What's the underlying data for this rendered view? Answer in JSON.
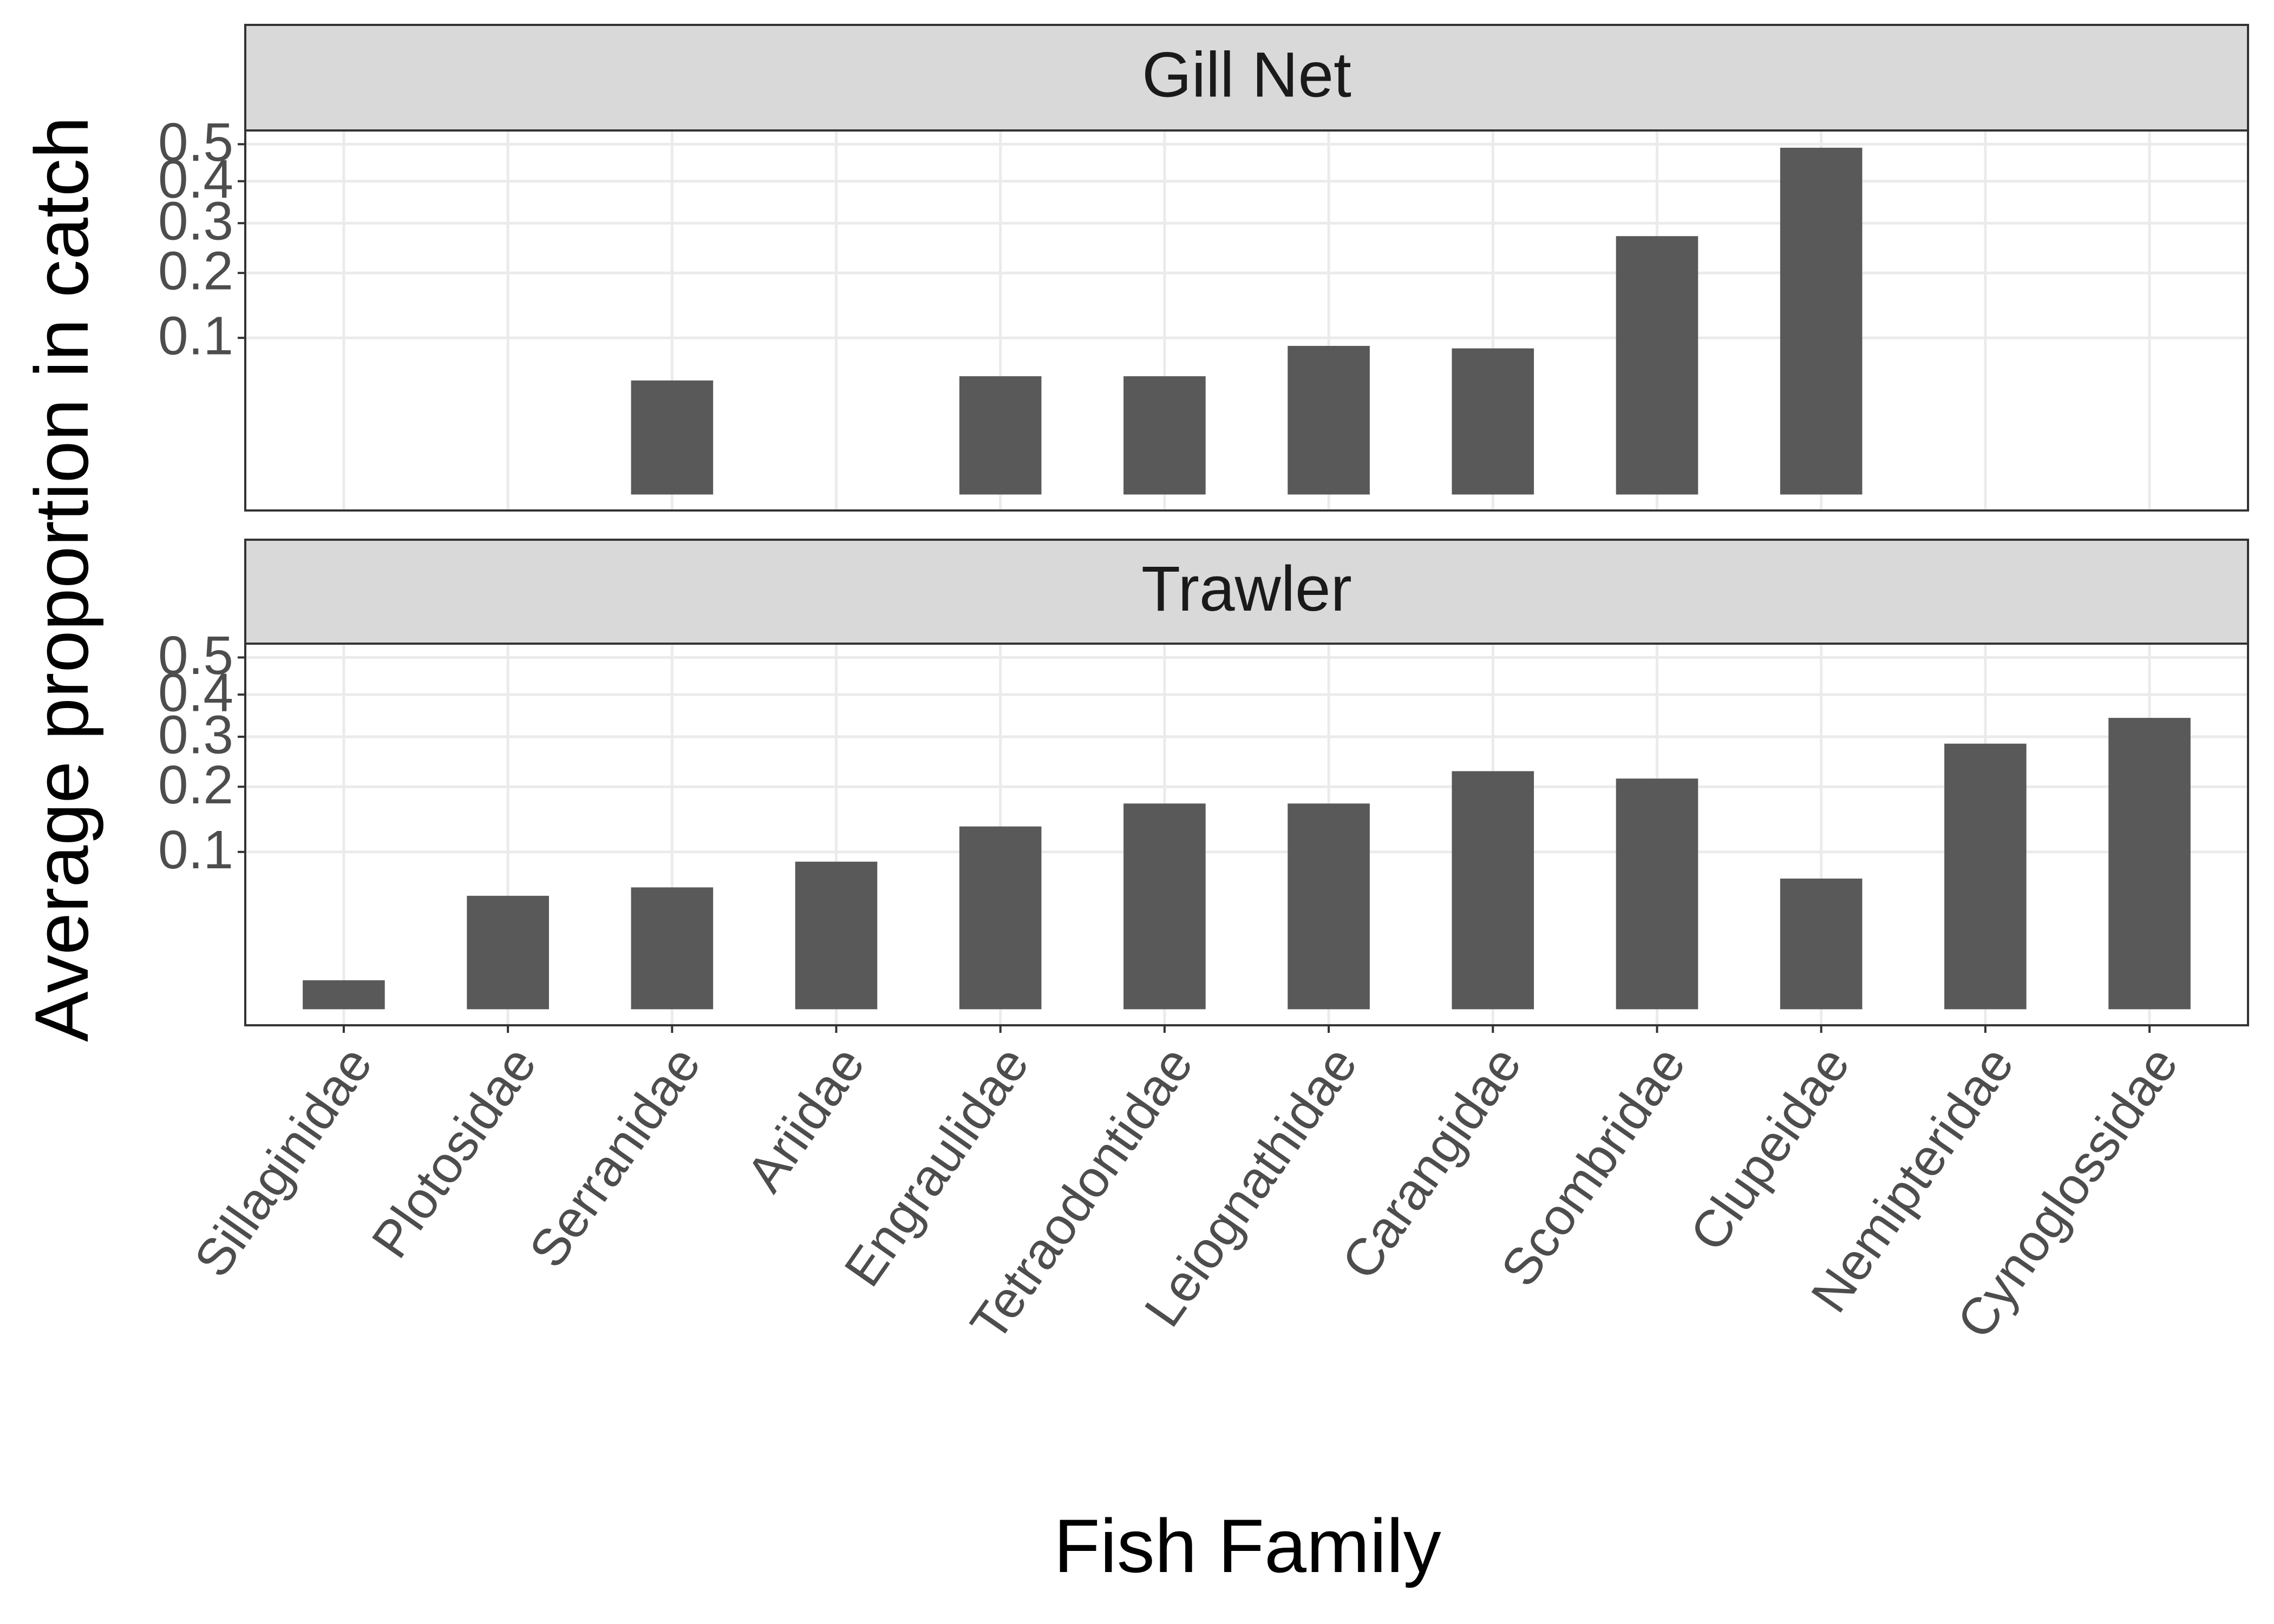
{
  "chart_data": {
    "type": "bar",
    "y_scale": "sqrt",
    "xlabel": "Fish Family",
    "ylabel": "Average proportion in catch",
    "categories": [
      "Sillaginidae",
      "Plotosidae",
      "Serranidae",
      "Ariidae",
      "Engraulidae",
      "Tetraodontidae",
      "Leiognathidae",
      "Carangidae",
      "Scombridae",
      "Clupeidae",
      "Nemipteridae",
      "Cynoglossidae"
    ],
    "color": "#595959",
    "grid": true,
    "ylim": [
      0,
      0.54
    ],
    "yticks": [
      0.1,
      0.2,
      0.3,
      0.4,
      0.5
    ],
    "facets": [
      {
        "title": "Gill Net",
        "values": [
          0,
          0,
          0.053,
          0,
          0.057,
          0.057,
          0.09,
          0.087,
          0.272,
          0.49,
          0,
          0
        ]
      },
      {
        "title": "Trawler",
        "values": [
          0.0034,
          0.052,
          0.06,
          0.088,
          0.135,
          0.171,
          0.171,
          0.229,
          0.215,
          0.069,
          0.285,
          0.343
        ]
      }
    ]
  }
}
